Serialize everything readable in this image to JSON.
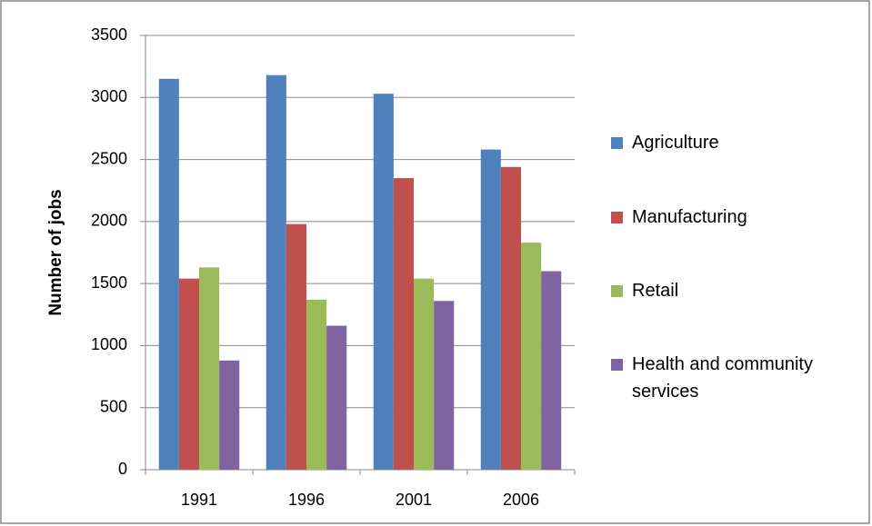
{
  "chart_data": {
    "type": "bar",
    "y_label": "Number of jobs",
    "categories": [
      "1991",
      "1996",
      "2001",
      "2006"
    ],
    "series": [
      {
        "name": "Agriculture",
        "color": "#4f81bd",
        "values": [
          3150,
          3180,
          3030,
          2580
        ]
      },
      {
        "name": "Manufacturing",
        "color": "#c0504d",
        "values": [
          1540,
          1980,
          2350,
          2440
        ]
      },
      {
        "name": "Retail",
        "color": "#9bbb59",
        "values": [
          1630,
          1370,
          1540,
          1830
        ]
      },
      {
        "name": "Health and community services",
        "color": "#8064a2",
        "values": [
          880,
          1160,
          1360,
          1600
        ]
      }
    ],
    "ylim": [
      0,
      3500
    ],
    "yticks": [
      0,
      500,
      1000,
      1500,
      2000,
      2500,
      3000,
      3500
    ],
    "grid": true,
    "legend": "right"
  }
}
